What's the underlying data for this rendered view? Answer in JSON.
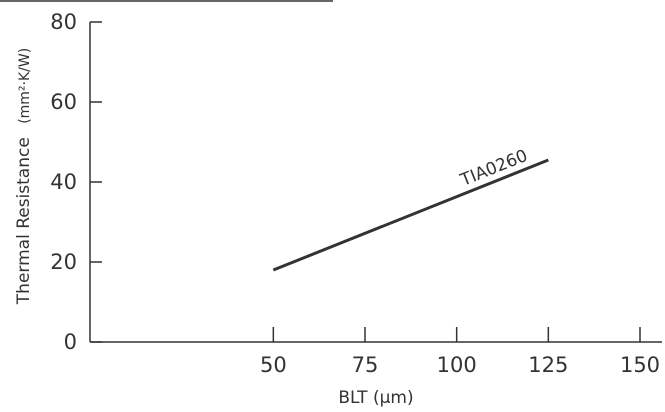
{
  "chart_data": {
    "type": "line",
    "title": "",
    "xlabel": "BLT (μm)",
    "ylabel": "Thermal Resistance",
    "ylabel_unit": "(mm²·K/W)",
    "xlim": [
      0,
      150
    ],
    "ylim": [
      0,
      80
    ],
    "xticks": [
      50,
      75,
      100,
      125,
      150
    ],
    "yticks": [
      0,
      20,
      40,
      60,
      80
    ],
    "grid": false,
    "legend": "none",
    "series": [
      {
        "name": "TIA0260",
        "x": [
          50,
          125
        ],
        "y": [
          18,
          45.5
        ],
        "color": "#333333"
      }
    ]
  }
}
